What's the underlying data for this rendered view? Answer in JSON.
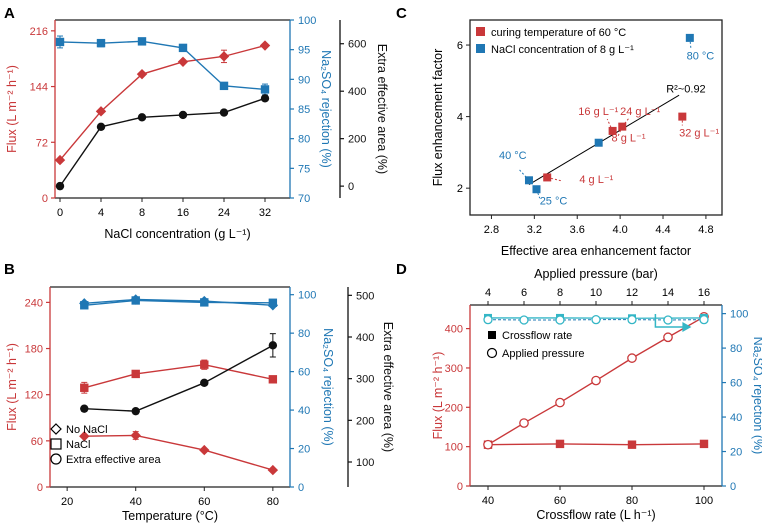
{
  "colors": {
    "red": "#c9383a",
    "blue": "#1f77b4",
    "black": "#111111",
    "cyan": "#34b6c6",
    "line": "#222222"
  },
  "chart_data": [
    {
      "panel": "A",
      "type": "line",
      "xlabel": "NaCl concentration (g L⁻¹)",
      "x_ticks": [
        "0",
        "4",
        "8",
        "16",
        "24",
        "32"
      ],
      "y_left": {
        "label": "Flux (L m⁻² h⁻¹)",
        "ticks": [
          "0",
          "72",
          "144",
          "216"
        ],
        "lim": [
          0,
          230
        ]
      },
      "y_right1": {
        "label": "Na₂SO₄ rejection (%)",
        "ticks": [
          "70",
          "75",
          "80",
          "85",
          "90",
          "95",
          "100"
        ],
        "lim": [
          70,
          100
        ]
      },
      "y_right2": {
        "label": "Extra effective area (%)",
        "ticks": [
          "0",
          "200",
          "400",
          "600"
        ],
        "lim": [
          -50,
          700
        ]
      },
      "series": [
        {
          "name": "Flux",
          "axis": "left",
          "marker": "diamond",
          "color": "red",
          "x": [
            0,
            4,
            8,
            16,
            24,
            32
          ],
          "values": [
            49,
            112,
            160,
            176,
            183,
            197
          ],
          "err": [
            0,
            0,
            0,
            0,
            8,
            0
          ]
        },
        {
          "name": "Na2SO4 rejection",
          "axis": "right1",
          "marker": "square",
          "color": "blue",
          "x": [
            0,
            4,
            8,
            16,
            24,
            32
          ],
          "values": [
            96.3,
            96.1,
            96.4,
            95.3,
            88.9,
            88.3
          ],
          "err": [
            1.0,
            0.6,
            0.5,
            0.4,
            0.5,
            0.9
          ]
        },
        {
          "name": "Extra effective area",
          "axis": "right2",
          "marker": "circle",
          "color": "black",
          "x": [
            0,
            4,
            8,
            16,
            24,
            32
          ],
          "values": [
            0,
            250,
            290,
            300,
            310,
            370
          ],
          "err": [
            0,
            0,
            0,
            0,
            0,
            0
          ]
        }
      ]
    },
    {
      "panel": "B",
      "type": "line",
      "xlabel": "Temperature (°C)",
      "x_ticks": [
        "20",
        "40",
        "60",
        "80"
      ],
      "y_left": {
        "label": "Flux (L m⁻² h⁻¹)",
        "ticks": [
          "0",
          "60",
          "120",
          "180",
          "240"
        ],
        "lim": [
          0,
          260
        ]
      },
      "y_right1": {
        "label": "Na₂SO₄ rejection (%)",
        "ticks": [
          "0",
          "20",
          "40",
          "60",
          "80",
          "100"
        ],
        "lim": [
          0,
          104
        ]
      },
      "y_right2": {
        "label": "Extra effective area (%)",
        "ticks": [
          "100",
          "200",
          "300",
          "400",
          "500"
        ],
        "lim": [
          40,
          520
        ]
      },
      "legend": [
        "No NaCl",
        "NaCl",
        "Extra effective area"
      ],
      "series": [
        {
          "name": "No NaCl flux",
          "axis": "left",
          "marker": "diamond",
          "color": "red",
          "x": [
            25,
            40,
            60,
            80
          ],
          "values": [
            66,
            67,
            48,
            22
          ],
          "err": [
            0,
            5,
            0,
            0
          ]
        },
        {
          "name": "NaCl flux",
          "axis": "left",
          "marker": "square",
          "color": "red",
          "x": [
            25,
            40,
            60,
            80
          ],
          "values": [
            129,
            147,
            159,
            140
          ],
          "err": [
            7,
            0,
            6,
            0
          ]
        },
        {
          "name": "No NaCl rejection",
          "axis": "right1",
          "marker": "diamond",
          "color": "blue",
          "x": [
            25,
            40,
            60,
            80
          ],
          "values": [
            95.5,
            97.5,
            96.7,
            94.5
          ],
          "err": [
            0,
            0,
            0,
            0
          ]
        },
        {
          "name": "NaCl rejection",
          "axis": "right1",
          "marker": "square",
          "color": "blue",
          "x": [
            25,
            40,
            60,
            80
          ],
          "values": [
            94.5,
            97.0,
            96.0,
            95.8
          ],
          "err": [
            1.2,
            0,
            1.0,
            1.5
          ]
        },
        {
          "name": "Extra effective area",
          "axis": "right2",
          "marker": "circle",
          "color": "black",
          "x": [
            25,
            40,
            60,
            80
          ],
          "values": [
            228,
            222,
            290,
            380
          ],
          "err": [
            0,
            0,
            0,
            28
          ]
        }
      ]
    },
    {
      "panel": "C",
      "type": "scatter",
      "xlabel": "Effective area enhancement factor",
      "ylabel": "Flux enhancement factor",
      "x_ticks": [
        "2.8",
        "3.2",
        "3.6",
        "4.0",
        "4.4",
        "4.8"
      ],
      "xlim": [
        2.6,
        4.95
      ],
      "y_ticks": [
        "2",
        "4",
        "6"
      ],
      "ylim": [
        1.25,
        6.7
      ],
      "legend": [
        "curing temperature of 60 °C",
        "NaCl concentration of 8 g L⁻¹"
      ],
      "fit_label": "R²~0.92",
      "fit_line": {
        "x": [
          3.15,
          4.55
        ],
        "y": [
          2.1,
          4.6
        ]
      },
      "series": [
        {
          "name": "curing temperature of 60 °C",
          "color": "red",
          "points": [
            [
              3.32,
              2.3,
              "4 g L⁻¹"
            ],
            [
              4.02,
              3.72,
              "8 g L⁻¹"
            ],
            [
              3.93,
              3.6,
              "16 g L⁻¹"
            ],
            [
              4.58,
              4.0,
              "32 g L⁻¹"
            ]
          ]
        },
        {
          "name": "NaCl concentration of 8 g L⁻¹",
          "color": "blue",
          "points": [
            [
              3.15,
              2.22,
              "40 °C"
            ],
            [
              3.22,
              1.97,
              "25 °C"
            ],
            [
              3.8,
              3.27,
              ""
            ],
            [
              4.65,
              6.2,
              "80 °C"
            ]
          ]
        }
      ],
      "extra_labels": [
        "24 g L⁻¹"
      ]
    },
    {
      "panel": "D",
      "type": "line",
      "xlabel": "Crossflow rate (L h⁻¹)",
      "x2label": "Applied pressure (bar)",
      "x_ticks": [
        "40",
        "60",
        "80",
        "100"
      ],
      "xlim": [
        35,
        105
      ],
      "x2_ticks": [
        "4",
        "6",
        "8",
        "10",
        "12",
        "14",
        "16"
      ],
      "y_left": {
        "label": "Flux (L m⁻² h⁻¹)",
        "ticks": [
          "0",
          "100",
          "200",
          "300",
          "400"
        ],
        "lim": [
          0,
          460
        ]
      },
      "y_right1": {
        "label": "Na₂SO₄ rejection (%)",
        "ticks": [
          "0",
          "20",
          "40",
          "60",
          "80",
          "100"
        ],
        "lim": [
          0,
          105
        ]
      },
      "legend": [
        "Crossflow rate",
        "Applied pressure"
      ],
      "series": [
        {
          "name": "Crossflow rate flux",
          "axis": "left",
          "marker": "square",
          "color": "red",
          "x": [
            40,
            60,
            80,
            100
          ],
          "values": [
            105,
            107,
            105,
            107
          ]
        },
        {
          "name": "Applied pressure flux",
          "axis": "left",
          "marker": "circle-open",
          "color": "red",
          "x_pressure": [
            4,
            6,
            8,
            10,
            12,
            14,
            16
          ],
          "values": [
            105,
            160,
            212,
            268,
            325,
            378,
            430
          ]
        },
        {
          "name": "Crossflow rate rejection",
          "axis": "right1",
          "marker": "square",
          "color": "cyan",
          "x": [
            40,
            60,
            80,
            100
          ],
          "values": [
            97.5,
            97.5,
            97.3,
            97.5
          ]
        },
        {
          "name": "Applied pressure rejection",
          "axis": "right1",
          "marker": "circle-open",
          "color": "cyan",
          "x_pressure": [
            4,
            6,
            8,
            10,
            12,
            14,
            16
          ],
          "values": [
            96.5,
            96.3,
            96.3,
            96.5,
            96.5,
            96.3,
            96.5
          ]
        }
      ]
    }
  ],
  "panel_labels": [
    "A",
    "B",
    "C",
    "D"
  ]
}
